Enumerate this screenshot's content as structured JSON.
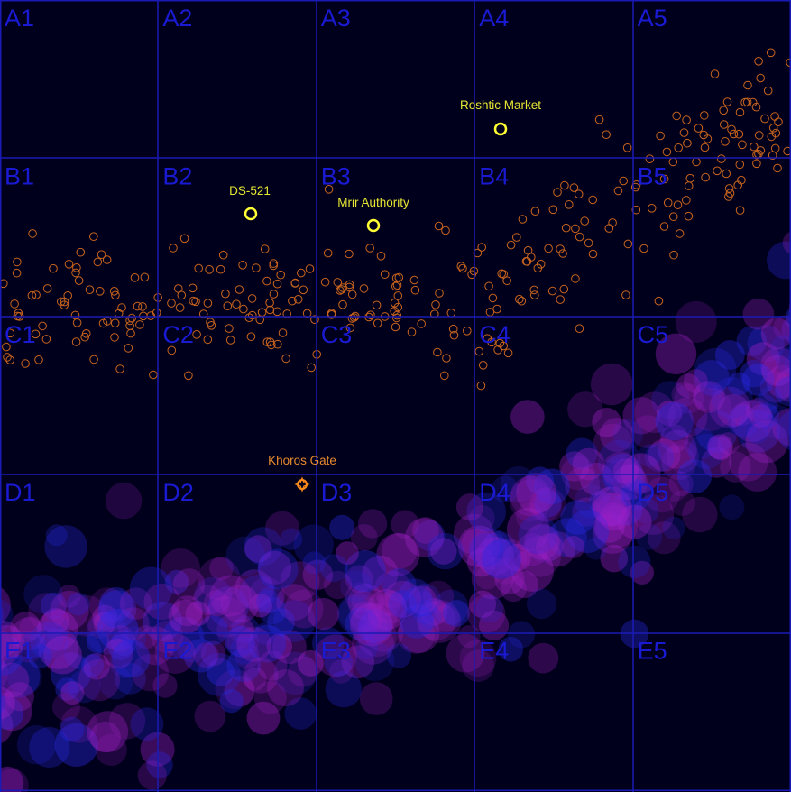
{
  "map": {
    "columns": [
      "1",
      "2",
      "3",
      "4",
      "5"
    ],
    "rows": [
      "A",
      "B",
      "C",
      "D",
      "E"
    ],
    "cell_labels": [
      "A1",
      "A2",
      "A3",
      "A4",
      "A5",
      "B1",
      "B2",
      "B3",
      "B4",
      "B5",
      "C1",
      "C2",
      "C3",
      "C4",
      "C5",
      "D1",
      "D2",
      "D3",
      "D4",
      "D5",
      "E1",
      "E2",
      "E3",
      "E4",
      "E5"
    ],
    "colors": {
      "background": "#00001c",
      "grid": "#1a1ab4",
      "grid_label": "#1a1ad2",
      "asteroid": "#c8641e",
      "poi": "#ffff33",
      "gate": "#ff8c1a",
      "nebula_purple": "#a020c8",
      "nebula_blue": "#2828e6"
    },
    "points_of_interest": [
      {
        "id": "roshtic-market",
        "name": "Roshtic Market",
        "type": "station",
        "cell": "A4"
      },
      {
        "id": "ds-521",
        "name": "DS-521",
        "type": "station",
        "cell": "B2"
      },
      {
        "id": "mrir-authority",
        "name": "Mrir Authority",
        "type": "station",
        "cell": "B3"
      }
    ],
    "gate": {
      "id": "khoros-gate",
      "name": "Khoros Gate",
      "cell": "D2",
      "icon": "jump-gate-icon"
    }
  }
}
